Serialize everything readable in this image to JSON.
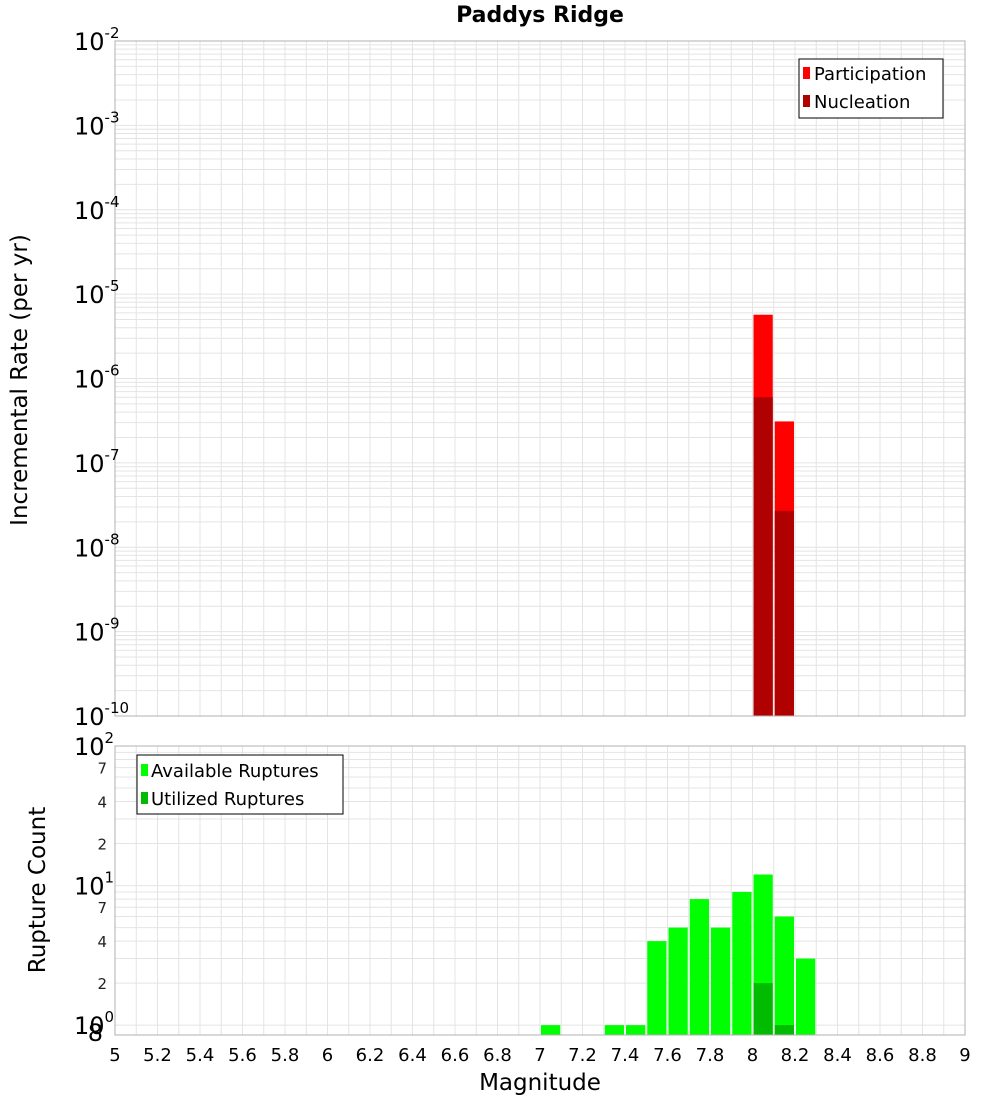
{
  "chart_data": [
    {
      "type": "bar",
      "title": "Paddys Ridge",
      "ylabel": "Incremental Rate (per yr)",
      "xlim": [
        5,
        9
      ],
      "ylim": [
        1e-10,
        0.01
      ],
      "yscale": "log",
      "bin_width": 0.1,
      "legend": {
        "placement": "top-right"
      },
      "grid": true,
      "y_ticks": [
        {
          "base": "10",
          "exp": "-10",
          "v": 1e-10
        },
        {
          "base": "10",
          "exp": "-9",
          "v": 1e-09
        },
        {
          "base": "10",
          "exp": "-8",
          "v": 1e-08
        },
        {
          "base": "10",
          "exp": "-7",
          "v": 1e-07
        },
        {
          "base": "10",
          "exp": "-6",
          "v": 1e-06
        },
        {
          "base": "10",
          "exp": "-5",
          "v": 1e-05
        },
        {
          "base": "10",
          "exp": "-4",
          "v": 0.0001
        },
        {
          "base": "10",
          "exp": "-3",
          "v": 0.001
        },
        {
          "base": "10",
          "exp": "-2",
          "v": 0.01
        }
      ],
      "series": [
        {
          "name": "Participation",
          "color": "#ff0000",
          "x": [
            8.05,
            8.15
          ],
          "values": [
            5.7e-06,
            3.1e-07
          ]
        },
        {
          "name": "Nucleation",
          "color": "#b00000",
          "x": [
            8.05,
            8.15
          ],
          "values": [
            6e-07,
            2.7e-08
          ]
        }
      ]
    },
    {
      "type": "bar",
      "xlabel": "Magnitude",
      "ylabel": "Rupture Count",
      "xlim": [
        5,
        9
      ],
      "ylim": [
        0.85,
        100
      ],
      "yscale": "log",
      "bin_width": 0.1,
      "legend": {
        "placement": "top-left"
      },
      "grid": true,
      "x_ticks": [
        "5",
        "5.2",
        "5.4",
        "5.6",
        "5.8",
        "6",
        "6.2",
        "6.4",
        "6.6",
        "6.8",
        "7",
        "7.2",
        "7.4",
        "7.6",
        "7.8",
        "8",
        "8.2",
        "8.4",
        "8.6",
        "8.8",
        "9"
      ],
      "y_major_ticks": [
        {
          "base": "10",
          "exp": "0",
          "v": 1
        },
        {
          "base": "10",
          "exp": "1",
          "v": 10
        },
        {
          "base": "10",
          "exp": "2",
          "v": 100
        }
      ],
      "y_minor_ticks": [
        {
          "label": "8",
          "v": 0.85
        },
        {
          "label": "2",
          "v": 2
        },
        {
          "label": "4",
          "v": 4
        },
        {
          "label": "7",
          "v": 7
        },
        {
          "label": "2",
          "v": 20
        },
        {
          "label": "4",
          "v": 40
        },
        {
          "label": "7",
          "v": 70
        }
      ],
      "series": [
        {
          "name": "Available Ruptures",
          "color": "#00ff00",
          "x": [
            7.05,
            7.35,
            7.45,
            7.55,
            7.65,
            7.75,
            7.85,
            7.95,
            8.05,
            8.15,
            8.25
          ],
          "values": [
            1,
            1,
            1,
            4,
            5,
            8,
            5,
            9,
            12,
            6,
            3
          ]
        },
        {
          "name": "Utilized Ruptures",
          "color": "#00bb00",
          "x": [
            8.05,
            8.15
          ],
          "values": [
            2,
            1
          ]
        }
      ]
    }
  ]
}
